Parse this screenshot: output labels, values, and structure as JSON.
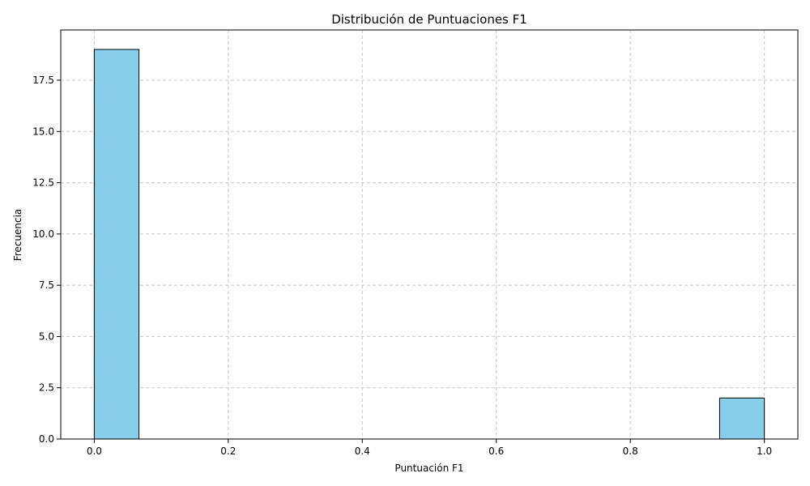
{
  "chart_data": {
    "type": "bar",
    "title": "Distribución de Puntuaciones F1",
    "xlabel": "Puntuación F1",
    "ylabel": "Frecuencia",
    "xlim": [
      -0.05,
      1.05
    ],
    "ylim": [
      0,
      19.95
    ],
    "xticks": [
      0.0,
      0.2,
      0.4,
      0.6,
      0.8,
      1.0
    ],
    "xtick_labels": [
      "0.0",
      "0.2",
      "0.4",
      "0.6",
      "0.8",
      "1.0"
    ],
    "yticks": [
      0.0,
      2.5,
      5.0,
      7.5,
      10.0,
      12.5,
      15.0,
      17.5
    ],
    "ytick_labels": [
      "0.0",
      "2.5",
      "5.0",
      "7.5",
      "10.0",
      "12.5",
      "15.0",
      "17.5"
    ],
    "bins": [
      {
        "x0": 0.0,
        "x1": 0.0667,
        "count": 19
      },
      {
        "x0": 0.9333,
        "x1": 1.0,
        "count": 2
      }
    ],
    "grid": true,
    "bar_color": "#87ceeb",
    "edge_color": "#000000",
    "grid_color": "#c8c8c8"
  }
}
